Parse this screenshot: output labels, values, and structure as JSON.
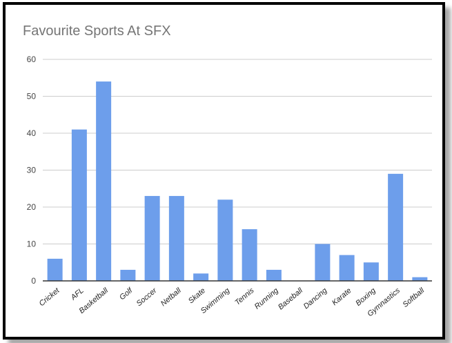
{
  "chart_data": {
    "type": "bar",
    "title": "Favourite Sports At SFX",
    "xlabel": "",
    "ylabel": "",
    "ylim": [
      0,
      60
    ],
    "yticks": [
      "0",
      "10",
      "20",
      "30",
      "40",
      "50",
      "60"
    ],
    "grid": true,
    "legend": "none",
    "bar_color": "#6d9eeb",
    "categories": [
      "Cricket",
      "AFL",
      "Basketball",
      "Golf",
      "Soccer",
      "Netball",
      "Skate",
      "Swimming",
      "Tennis",
      "Running",
      "Baseball",
      "Dancing",
      "Karate",
      "Boxing",
      "Gymnastics",
      "Softball"
    ],
    "values": [
      6,
      41,
      54,
      3,
      23,
      23,
      2,
      22,
      14,
      3,
      0,
      10,
      7,
      5,
      29,
      1
    ]
  }
}
